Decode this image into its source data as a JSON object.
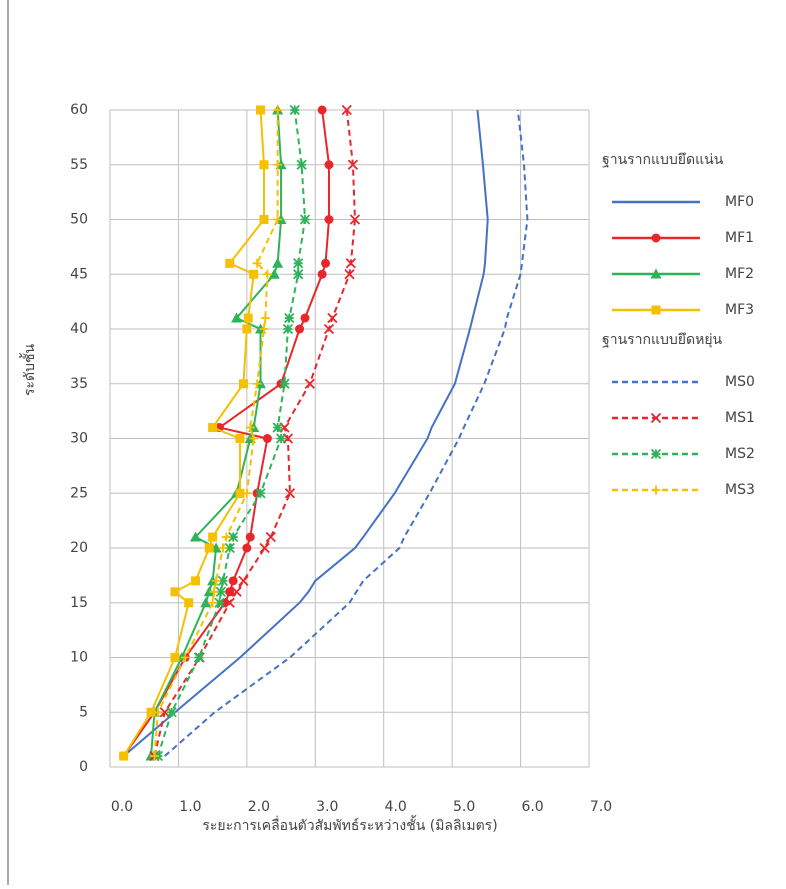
{
  "chart_data": {
    "type": "line",
    "y_label": "ระดับชั้น",
    "x_label": "ระยะการเคลื่อนตัวสัมพัทธ์ระหว่างชั้น (มิลลิเมตร)",
    "y": [
      1,
      5,
      10,
      15,
      16,
      17,
      20,
      21,
      25,
      30,
      31,
      35,
      40,
      41,
      45,
      46,
      50,
      55,
      60
    ],
    "xlim": [
      0,
      7
    ],
    "xticks": [
      {
        "value": 0,
        "label": "0.0"
      },
      {
        "value": 1,
        "label": "1.0"
      },
      {
        "value": 2,
        "label": "2.0"
      },
      {
        "value": 3,
        "label": "3.0"
      },
      {
        "value": 4,
        "label": "4.0"
      },
      {
        "value": 5,
        "label": "5.0"
      },
      {
        "value": 6,
        "label": "6.0"
      },
      {
        "value": 7,
        "label": "7.0"
      }
    ],
    "ylim": [
      0,
      60
    ],
    "yticks": [
      0,
      5,
      10,
      15,
      20,
      25,
      30,
      35,
      40,
      45,
      50,
      55,
      60
    ],
    "grid": true,
    "series_groups": [
      {
        "title": "ฐานรากแบบยึดแน่น",
        "series": [
          {
            "name": "MF0",
            "color": "#4472c4",
            "dashed": false,
            "marker": "none",
            "values": [
              0.2,
              0.95,
              1.9,
              2.77,
              2.9,
              3.0,
              3.58,
              3.7,
              4.16,
              4.64,
              4.7,
              5.04,
              5.26,
              5.3,
              5.46,
              5.48,
              5.52,
              5.45,
              5.37
            ]
          },
          {
            "name": "MF1",
            "color": "#e8262b",
            "dashed": false,
            "marker": "circle",
            "values": [
              0.2,
              0.65,
              1.1,
              1.68,
              1.75,
              1.8,
              2.0,
              2.05,
              2.15,
              2.3,
              1.6,
              2.5,
              2.77,
              2.85,
              3.1,
              3.15,
              3.2,
              3.2,
              3.1
            ]
          },
          {
            "name": "MF2",
            "color": "#2eb35a",
            "dashed": false,
            "marker": "triangle",
            "values": [
              0.6,
              0.65,
              1.05,
              1.4,
              1.45,
              1.5,
              1.55,
              1.25,
              1.85,
              2.05,
              2.1,
              2.2,
              2.2,
              1.85,
              2.4,
              2.45,
              2.5,
              2.5,
              2.45
            ]
          },
          {
            "name": "MF3",
            "color": "#f5c000",
            "dashed": false,
            "marker": "square",
            "values": [
              0.2,
              0.6,
              0.95,
              1.15,
              0.95,
              1.25,
              1.45,
              1.5,
              1.9,
              1.9,
              1.5,
              1.95,
              2.0,
              2.02,
              2.1,
              1.75,
              2.25,
              2.25,
              2.2
            ]
          }
        ]
      },
      {
        "title": "ฐานรากแบบยึดหยุ่น",
        "series": [
          {
            "name": "MS0",
            "color": "#4472c4",
            "dashed": true,
            "marker": "none",
            "values": [
              0.8,
              1.53,
              2.63,
              3.5,
              3.6,
              3.7,
              4.23,
              4.3,
              4.67,
              5.1,
              5.17,
              5.47,
              5.77,
              5.8,
              6.0,
              6.02,
              6.1,
              6.05,
              5.96
            ]
          },
          {
            "name": "MS1",
            "color": "#e8262b",
            "dashed": true,
            "marker": "x",
            "values": [
              0.65,
              0.8,
              1.31,
              1.75,
              1.85,
              1.95,
              2.26,
              2.35,
              2.63,
              2.6,
              2.55,
              2.92,
              3.2,
              3.25,
              3.5,
              3.52,
              3.58,
              3.55,
              3.46
            ]
          },
          {
            "name": "MS2",
            "color": "#2eb35a",
            "dashed": true,
            "marker": "star",
            "values": [
              0.7,
              0.9,
              1.3,
              1.6,
              1.62,
              1.65,
              1.75,
              1.8,
              2.2,
              2.5,
              2.45,
              2.55,
              2.6,
              2.62,
              2.75,
              2.75,
              2.85,
              2.8,
              2.7
            ]
          },
          {
            "name": "MS3",
            "color": "#f5c000",
            "dashed": true,
            "marker": "plus",
            "values": [
              0.65,
              0.7,
              1.1,
              1.5,
              1.52,
              1.55,
              1.65,
              1.7,
              2.0,
              2.1,
              2.05,
              2.15,
              2.25,
              2.27,
              2.3,
              2.15,
              2.45,
              2.45,
              2.45
            ]
          }
        ]
      }
    ]
  }
}
